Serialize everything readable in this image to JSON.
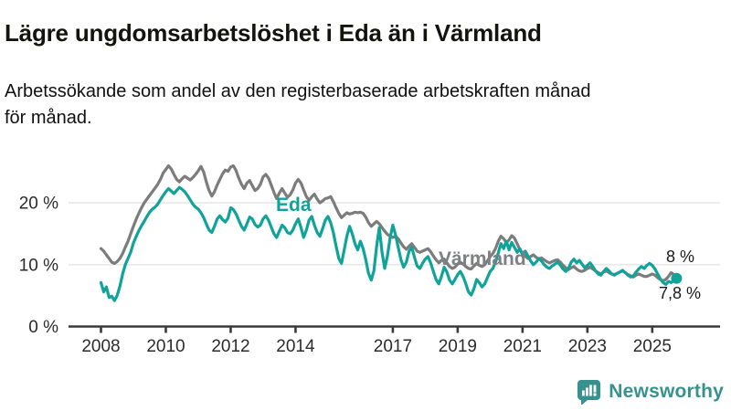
{
  "header": {
    "title": "Lägre ungdomsarbetslöshet i Eda än i Värmland",
    "subtitle": "Arbetssökande som andel av den registerbaserade arbetskraften månad\nför månad."
  },
  "footer": {
    "brand": "Newsworthy"
  },
  "colors": {
    "eda": "#10a39a",
    "varmland": "#7c7c7c",
    "varmland_label": "#7e8084",
    "annotation_text": "#1a1a1a",
    "axis": "#3a3a3a",
    "grid": "#e4e4e4",
    "tick_text": "#2b2b2b",
    "brand": "#37928d",
    "background": "#ffffff"
  },
  "chart_data": {
    "type": "line",
    "title": "Lägre ungdomsarbetslöshet i Eda än i Värmland",
    "subtitle": "Arbetssökande som andel av den registerbaserade arbetskraften månad för månad.",
    "unit": "%",
    "frequency": "monthly",
    "x_start": {
      "year": 2008,
      "month": 1
    },
    "x_end": {
      "year": 2025,
      "month": 10
    },
    "x_ticks": [
      2008,
      2010,
      2012,
      2014,
      2017,
      2019,
      2021,
      2023,
      2025
    ],
    "y_ticks": [
      {
        "value": 0,
        "label": "0 %"
      },
      {
        "value": 10,
        "label": "10 %"
      },
      {
        "value": 20,
        "label": "20 %"
      }
    ],
    "ylim": [
      0,
      28
    ],
    "grid": true,
    "legend_position": "inline-labels",
    "series": [
      {
        "name": "Värmland",
        "color": "#7c7c7c",
        "end_dot": false,
        "end_value_label": "8 %",
        "values": [
          12.6,
          12.2,
          11.6,
          11.0,
          10.4,
          10.2,
          10.5,
          11.0,
          11.8,
          12.8,
          13.8,
          15.0,
          16.2,
          17.3,
          18.3,
          19.2,
          20.0,
          20.6,
          21.2,
          21.8,
          22.4,
          23.0,
          23.8,
          24.8,
          25.4,
          26.0,
          25.5,
          24.6,
          23.8,
          23.4,
          23.9,
          24.3,
          24.0,
          23.7,
          24.1,
          24.6,
          25.2,
          25.9,
          25.0,
          23.4,
          22.0,
          21.1,
          21.8,
          22.9,
          23.8,
          24.7,
          25.3,
          25.1,
          25.8,
          26.0,
          25.2,
          24.0,
          23.0,
          22.3,
          23.2,
          23.6,
          22.8,
          22.0,
          22.3,
          23.0,
          24.2,
          24.6,
          24.0,
          22.9,
          21.7,
          20.7,
          21.6,
          22.3,
          21.6,
          20.9,
          21.3,
          22.1,
          23.2,
          23.8,
          23.2,
          22.1,
          21.0,
          20.4,
          21.0,
          21.4,
          20.6,
          20.0,
          20.3,
          20.7,
          20.8,
          21.0,
          20.2,
          19.2,
          18.3,
          17.6,
          18.0,
          18.4,
          18.2,
          18.3,
          18.5,
          18.4,
          18.5,
          18.3,
          17.7,
          16.8,
          16.2,
          16.6,
          17.0,
          16.6,
          16.0,
          15.4,
          14.9,
          14.6,
          14.4,
          14.6,
          14.2,
          13.5,
          12.9,
          12.5,
          13.0,
          13.4,
          12.8,
          12.2,
          12.0,
          12.2,
          12.4,
          12.6,
          12.1,
          11.4,
          10.8,
          10.3,
          10.7,
          10.9,
          10.3,
          9.7,
          9.4,
          9.6,
          10.1,
          10.4,
          10.1,
          9.7,
          9.4,
          9.3,
          9.8,
          10.2,
          9.9,
          9.7,
          10.0,
          10.6,
          11.3,
          11.8,
          12.6,
          13.8,
          14.6,
          14.2,
          13.6,
          14.0,
          14.7,
          14.3,
          13.4,
          12.4,
          11.8,
          11.4,
          11.0,
          11.3,
          11.6,
          11.2,
          10.9,
          11.1,
          10.8,
          10.5,
          10.3,
          10.5,
          10.7,
          10.8,
          10.4,
          9.9,
          9.5,
          9.2,
          9.5,
          9.7,
          9.3,
          9.0,
          8.9,
          9.1,
          9.4,
          9.6,
          9.3,
          9.0,
          8.7,
          8.5,
          8.8,
          9.0,
          8.7,
          8.5,
          8.4,
          8.6,
          8.8,
          9.0,
          8.7,
          8.4,
          8.2,
          8.0,
          8.3,
          8.5,
          8.3,
          8.1,
          8.1,
          8.3,
          8.5,
          8.3,
          7.9,
          7.6,
          7.4,
          7.6,
          8.1,
          8.7,
          8.4,
          8.0
        ]
      },
      {
        "name": "Eda",
        "color": "#10a39a",
        "end_dot": true,
        "end_value_label": "7,8 %",
        "values": [
          7.1,
          5.6,
          6.4,
          4.7,
          4.9,
          4.2,
          5.0,
          6.5,
          8.5,
          10.0,
          11.0,
          12.0,
          13.5,
          14.5,
          15.5,
          16.3,
          17.0,
          17.8,
          18.5,
          19.0,
          19.3,
          19.8,
          20.5,
          21.2,
          21.8,
          22.3,
          21.9,
          21.5,
          22.0,
          22.5,
          22.2,
          21.8,
          21.2,
          20.5,
          19.8,
          19.3,
          19.0,
          18.4,
          17.6,
          16.6,
          15.6,
          15.2,
          16.2,
          17.4,
          17.9,
          17.3,
          16.9,
          17.5,
          19.2,
          18.9,
          18.2,
          17.2,
          16.2,
          15.6,
          16.6,
          17.7,
          17.4,
          16.5,
          16.1,
          16.4,
          17.4,
          17.9,
          17.2,
          16.1,
          15.0,
          14.4,
          15.4,
          16.4,
          16.0,
          15.2,
          15.0,
          15.6,
          16.6,
          17.4,
          16.0,
          14.4,
          15.6,
          17.2,
          17.8,
          16.4,
          15.2,
          14.6,
          15.8,
          17.2,
          17.8,
          16.8,
          15.2,
          13.0,
          11.0,
          10.2,
          12.4,
          14.6,
          16.2,
          15.0,
          13.4,
          12.4,
          13.8,
          12.6,
          10.8,
          8.6,
          7.5,
          9.0,
          13.0,
          16.0,
          12.0,
          9.4,
          11.4,
          14.4,
          16.4,
          14.8,
          12.8,
          10.8,
          9.6,
          10.4,
          12.2,
          12.8,
          11.2,
          9.8,
          9.4,
          10.2,
          10.9,
          11.3,
          10.3,
          8.9,
          7.6,
          6.9,
          8.1,
          9.6,
          8.8,
          7.5,
          6.9,
          7.6,
          8.4,
          8.9,
          8.1,
          6.9,
          5.6,
          5.1,
          6.1,
          7.6,
          7.1,
          6.4,
          6.9,
          7.9,
          8.9,
          9.4,
          10.4,
          11.9,
          13.4,
          12.6,
          13.8,
          12.4,
          13.6,
          12.8,
          12.0,
          12.6,
          11.6,
          12.2,
          11.4,
          10.6,
          10.0,
          10.4,
          11.0,
          10.6,
          10.0,
          9.6,
          9.4,
          9.8,
          10.1,
          10.4,
          9.9,
          9.3,
          8.9,
          9.4,
          10.4,
          10.9,
          10.3,
          10.7,
          10.1,
          9.5,
          9.9,
          10.3,
          9.7,
          9.0,
          8.5,
          8.3,
          8.9,
          9.4,
          9.0,
          8.5,
          8.3,
          8.6,
          8.8,
          9.1,
          8.7,
          8.3,
          8.0,
          8.2,
          8.8,
          9.3,
          9.7,
          9.4,
          9.9,
          10.2,
          9.9,
          9.3,
          8.5,
          7.7,
          7.1,
          6.8,
          7.3,
          7.1,
          7.5,
          7.8
        ]
      }
    ],
    "annotations": {
      "eda_label": "Eda",
      "varmland_label": "Värmland",
      "varmland_end_label": "8 %",
      "eda_end_label": "7,8 %"
    }
  }
}
